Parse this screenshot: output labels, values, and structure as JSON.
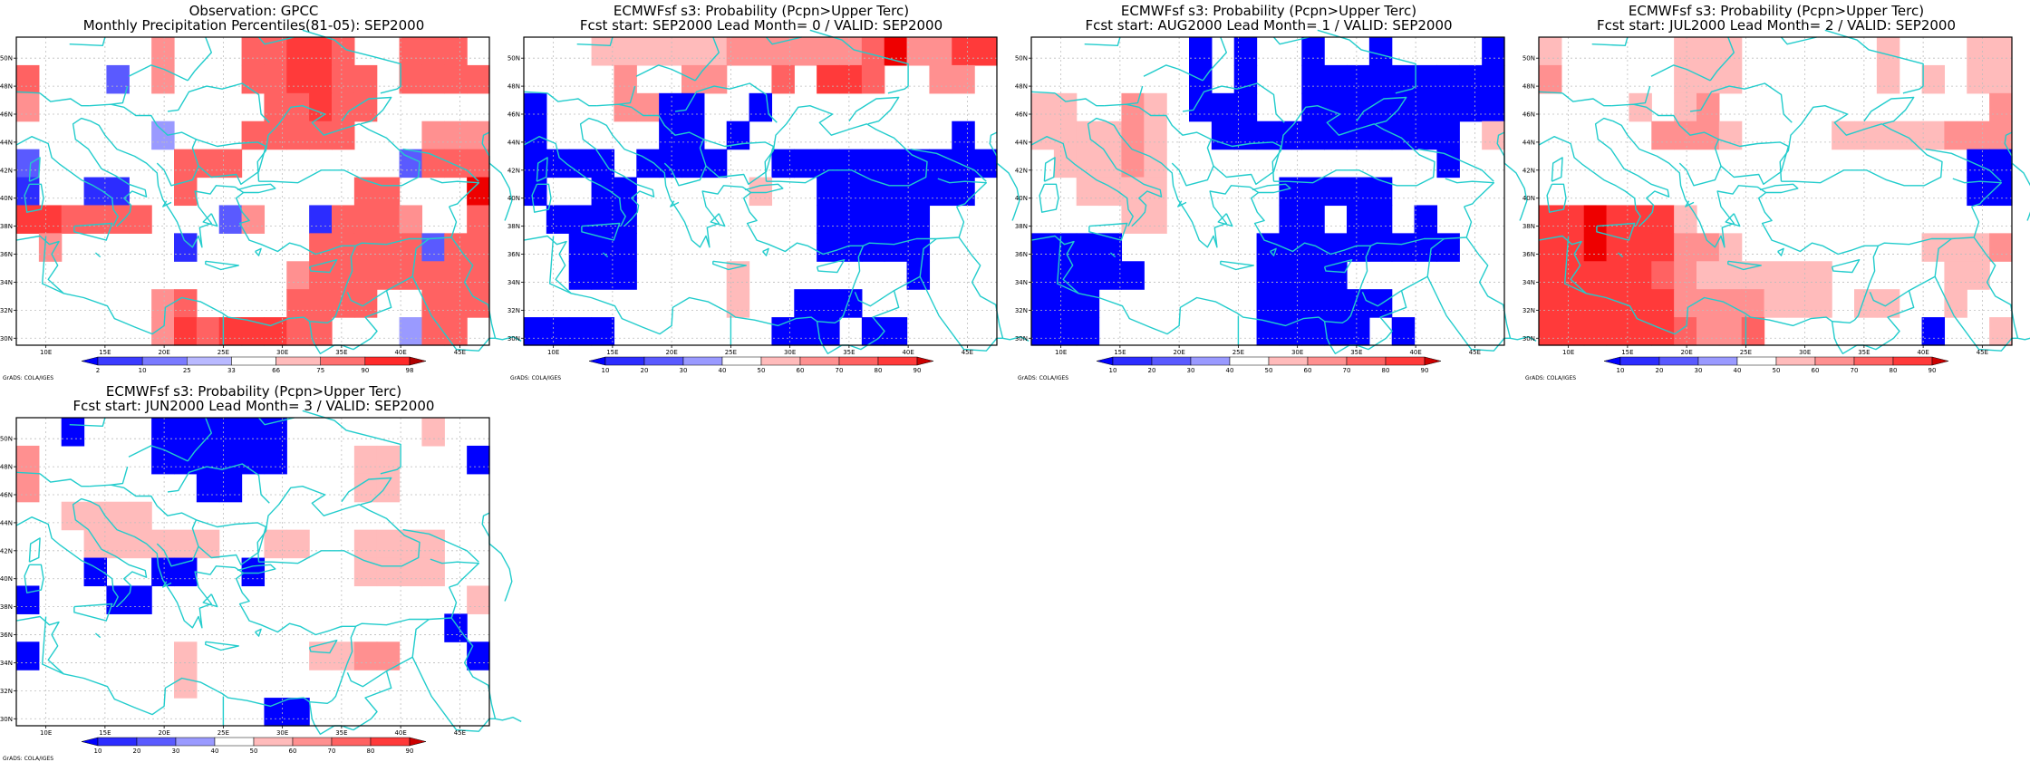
{
  "credit": "GrADS: COLA/IGES",
  "x_ticks": [
    "10E",
    "15E",
    "20E",
    "25E",
    "30E",
    "35E",
    "40E",
    "45E"
  ],
  "y_ticks": [
    "50N",
    "48N",
    "46N",
    "44N",
    "42N",
    "40N",
    "38N",
    "36N",
    "34N",
    "32N",
    "30N"
  ],
  "colors": {
    "coast": "#22cccc",
    "grid": "#bdbdbd",
    "blue_scale": [
      "#0000ff",
      "#2c2cff",
      "#5a5aff",
      "#9a9aff",
      "#c9c9ff"
    ],
    "red_scale": [
      "#ffbbbb",
      "#ff9090",
      "#ff6262",
      "#ff3a3a",
      "#ee0000",
      "#cc0000",
      "#8e0000"
    ]
  },
  "panels": [
    {
      "title1": "Observation: GPCC",
      "title2": "Monthly Precipitation Percentiles(81-05): SEP2000",
      "colorbar": {
        "labels": [
          "2",
          "10",
          "25",
          "33",
          "66",
          "75",
          "90",
          "98"
        ],
        "colors": [
          "#0000ff",
          "#3b3bff",
          "#7a7aff",
          "#b9b9ff",
          "#ffffff",
          "#ffbbbb",
          "#ff7070",
          "#ff2a2a",
          "#b00000"
        ]
      },
      "grid": [
        [
          0,
          0,
          0,
          0,
          0,
          0,
          2,
          0,
          0,
          0,
          3,
          3,
          4,
          4,
          3,
          0,
          0,
          3,
          3,
          3,
          0
        ],
        [
          3,
          0,
          0,
          0,
          -3,
          0,
          2,
          0,
          0,
          0,
          3,
          3,
          4,
          4,
          3,
          3,
          0,
          3,
          3,
          3,
          3
        ],
        [
          2,
          0,
          0,
          0,
          0,
          0,
          0,
          0,
          0,
          0,
          0,
          3,
          3,
          4,
          3,
          3,
          0,
          0,
          0,
          0,
          0
        ],
        [
          0,
          0,
          0,
          0,
          0,
          0,
          -4,
          0,
          0,
          0,
          3,
          3,
          3,
          3,
          3,
          0,
          0,
          0,
          2,
          2,
          2
        ],
        [
          -3,
          0,
          0,
          0,
          0,
          0,
          0,
          3,
          3,
          3,
          0,
          0,
          0,
          0,
          0,
          0,
          0,
          -3,
          3,
          3,
          3
        ],
        [
          -2,
          0,
          0,
          -2,
          -2,
          0,
          0,
          3,
          0,
          0,
          0,
          0,
          0,
          0,
          0,
          3,
          3,
          0,
          0,
          0,
          5
        ],
        [
          4,
          4,
          3,
          3,
          3,
          3,
          0,
          0,
          0,
          -3,
          2,
          0,
          0,
          -2,
          3,
          3,
          3,
          2,
          0,
          0,
          3
        ],
        [
          0,
          2,
          0,
          0,
          0,
          0,
          0,
          -2,
          0,
          0,
          0,
          0,
          0,
          3,
          3,
          3,
          3,
          3,
          -3,
          3,
          3
        ],
        [
          0,
          0,
          0,
          0,
          0,
          0,
          0,
          0,
          0,
          0,
          0,
          0,
          2,
          3,
          3,
          3,
          3,
          3,
          3,
          3,
          3
        ],
        [
          0,
          0,
          0,
          0,
          0,
          0,
          2,
          3,
          0,
          0,
          0,
          0,
          3,
          3,
          3,
          3,
          0,
          0,
          3,
          3,
          3
        ],
        [
          0,
          0,
          0,
          0,
          0,
          0,
          2,
          4,
          3,
          4,
          4,
          4,
          3,
          3,
          0,
          0,
          0,
          -4,
          3,
          3,
          0
        ]
      ]
    },
    {
      "title1": "ECMWFsf s3: Probability (Pcpn>Upper Terc)",
      "title2": "Fcst start: SEP2000  Lead Month= 0 / VALID: SEP2000",
      "colorbar": {
        "labels": [
          "10",
          "20",
          "30",
          "40",
          "50",
          "60",
          "70",
          "80",
          "90"
        ],
        "colors": [
          "#0000ff",
          "#2c2cff",
          "#5a5aff",
          "#9a9aff",
          "#ffffff",
          "#ffbbbb",
          "#ff9090",
          "#ff6262",
          "#ff3a3a",
          "#cc0000"
        ]
      },
      "grid": [
        [
          0,
          0,
          0,
          1,
          1,
          1,
          1,
          1,
          1,
          2,
          2,
          2,
          2,
          2,
          2,
          3,
          5,
          2,
          2,
          4,
          4
        ],
        [
          0,
          0,
          0,
          0,
          2,
          0,
          0,
          2,
          2,
          0,
          0,
          3,
          0,
          4,
          4,
          3,
          0,
          0,
          2,
          2,
          0
        ],
        [
          -1,
          0,
          0,
          0,
          2,
          2,
          -1,
          -1,
          0,
          0,
          -1,
          0,
          0,
          0,
          0,
          0,
          0,
          0,
          0,
          0,
          0
        ],
        [
          -1,
          0,
          0,
          0,
          0,
          0,
          -1,
          -1,
          0,
          -1,
          0,
          0,
          0,
          0,
          0,
          0,
          0,
          0,
          0,
          -1,
          0
        ],
        [
          -1,
          -1,
          -1,
          -1,
          0,
          -1,
          -1,
          -1,
          -1,
          0,
          0,
          -1,
          -1,
          -1,
          -1,
          -1,
          -1,
          -1,
          -1,
          -1,
          -1
        ],
        [
          -1,
          0,
          0,
          -1,
          -1,
          0,
          0,
          0,
          0,
          0,
          1,
          0,
          0,
          -1,
          -1,
          -1,
          -1,
          -1,
          -1,
          -1,
          0
        ],
        [
          0,
          -1,
          -1,
          -1,
          -1,
          0,
          0,
          0,
          0,
          0,
          0,
          0,
          0,
          -1,
          -1,
          -1,
          -1,
          -1,
          0,
          0,
          0
        ],
        [
          0,
          0,
          -1,
          -1,
          -1,
          0,
          0,
          0,
          0,
          0,
          0,
          0,
          0,
          -1,
          -1,
          -1,
          -1,
          -1,
          0,
          0,
          0
        ],
        [
          0,
          0,
          -1,
          -1,
          -1,
          0,
          0,
          0,
          0,
          1,
          0,
          0,
          0,
          0,
          0,
          0,
          0,
          -1,
          0,
          0,
          0
        ],
        [
          0,
          0,
          0,
          0,
          0,
          0,
          0,
          0,
          0,
          1,
          0,
          0,
          -1,
          -1,
          -1,
          0,
          0,
          0,
          0,
          0,
          0
        ],
        [
          -1,
          -1,
          -1,
          -1,
          0,
          0,
          0,
          0,
          0,
          0,
          0,
          -1,
          -1,
          -1,
          0,
          -1,
          -1,
          0,
          0,
          0,
          0
        ]
      ]
    },
    {
      "title1": "ECMWFsf s3: Probability (Pcpn>Upper Terc)",
      "title2": "Fcst start: AUG2000  Lead Month= 1 / VALID: SEP2000",
      "colorbar": {
        "labels": [
          "10",
          "20",
          "30",
          "40",
          "50",
          "60",
          "70",
          "80",
          "90"
        ],
        "colors": [
          "#0000ff",
          "#2c2cff",
          "#5a5aff",
          "#9a9aff",
          "#ffffff",
          "#ffbbbb",
          "#ff9090",
          "#ff6262",
          "#ff3a3a",
          "#cc0000"
        ]
      },
      "grid": [
        [
          0,
          0,
          0,
          0,
          0,
          0,
          0,
          -1,
          0,
          -1,
          0,
          0,
          -1,
          0,
          0,
          -1,
          0,
          0,
          0,
          0,
          -1
        ],
        [
          0,
          0,
          0,
          0,
          0,
          0,
          0,
          -1,
          0,
          -1,
          0,
          0,
          -1,
          -1,
          -1,
          -1,
          -1,
          -1,
          -1,
          -1,
          -1
        ],
        [
          1,
          1,
          0,
          0,
          2,
          1,
          0,
          -1,
          -1,
          -1,
          0,
          0,
          -1,
          -1,
          -1,
          -1,
          -1,
          -1,
          -1,
          -1,
          -1
        ],
        [
          1,
          1,
          1,
          1,
          2,
          1,
          0,
          0,
          -1,
          -1,
          -1,
          -1,
          -1,
          -1,
          -1,
          -1,
          -1,
          -1,
          -1,
          0,
          1
        ],
        [
          0,
          1,
          1,
          1,
          2,
          1,
          0,
          0,
          0,
          0,
          0,
          0,
          0,
          0,
          0,
          0,
          0,
          0,
          -1,
          0,
          0
        ],
        [
          0,
          0,
          1,
          1,
          1,
          1,
          0,
          0,
          0,
          0,
          0,
          -1,
          -1,
          -1,
          -1,
          -1,
          0,
          0,
          0,
          0,
          0
        ],
        [
          0,
          0,
          0,
          0,
          1,
          1,
          0,
          0,
          0,
          0,
          0,
          -1,
          -1,
          0,
          -1,
          -1,
          0,
          -1,
          0,
          0,
          0
        ],
        [
          -1,
          -1,
          -1,
          -1,
          0,
          0,
          0,
          0,
          0,
          0,
          -1,
          -1,
          -1,
          -1,
          -1,
          -1,
          -1,
          -1,
          -1,
          0,
          0
        ],
        [
          -1,
          -1,
          -1,
          -1,
          -1,
          0,
          0,
          0,
          0,
          0,
          -1,
          -1,
          -1,
          -1,
          0,
          0,
          0,
          0,
          0,
          0,
          0
        ],
        [
          -1,
          -1,
          -1,
          0,
          0,
          0,
          0,
          0,
          0,
          0,
          -1,
          -1,
          -1,
          -1,
          -1,
          -1,
          0,
          0,
          0,
          0,
          0
        ],
        [
          -1,
          -1,
          -1,
          0,
          0,
          0,
          0,
          0,
          0,
          0,
          -1,
          -1,
          -1,
          -1,
          -1,
          0,
          -1,
          0,
          0,
          0,
          0
        ]
      ]
    },
    {
      "title1": "ECMWFsf s3: Probability (Pcpn>Upper Terc)",
      "title2": "Fcst start: JUL2000  Lead Month= 2 / VALID: SEP2000",
      "colorbar": {
        "labels": [
          "10",
          "20",
          "30",
          "40",
          "50",
          "60",
          "70",
          "80",
          "90"
        ],
        "colors": [
          "#0000ff",
          "#2c2cff",
          "#5a5aff",
          "#9a9aff",
          "#ffffff",
          "#ffbbbb",
          "#ff9090",
          "#ff6262",
          "#ff3a3a",
          "#cc0000"
        ]
      },
      "grid": [
        [
          1,
          0,
          0,
          0,
          0,
          0,
          1,
          1,
          1,
          0,
          0,
          0,
          0,
          0,
          0,
          1,
          0,
          0,
          0,
          1,
          1
        ],
        [
          2,
          0,
          0,
          0,
          0,
          0,
          1,
          1,
          1,
          0,
          0,
          0,
          0,
          0,
          0,
          1,
          0,
          1,
          0,
          1,
          1
        ],
        [
          0,
          0,
          0,
          0,
          1,
          0,
          1,
          2,
          0,
          0,
          0,
          0,
          0,
          0,
          0,
          0,
          0,
          0,
          0,
          0,
          2
        ],
        [
          0,
          0,
          0,
          0,
          0,
          2,
          2,
          2,
          1,
          0,
          0,
          0,
          0,
          1,
          1,
          1,
          1,
          1,
          2,
          2,
          2
        ],
        [
          0,
          0,
          0,
          0,
          0,
          0,
          0,
          0,
          0,
          0,
          0,
          0,
          0,
          0,
          0,
          0,
          0,
          0,
          0,
          -1,
          -1
        ],
        [
          0,
          0,
          0,
          0,
          0,
          0,
          0,
          0,
          0,
          0,
          0,
          0,
          0,
          0,
          0,
          0,
          0,
          0,
          0,
          -1,
          -1
        ],
        [
          4,
          4,
          5,
          4,
          4,
          4,
          1,
          0,
          0,
          0,
          0,
          0,
          0,
          0,
          0,
          0,
          0,
          0,
          0,
          0,
          0
        ],
        [
          4,
          4,
          5,
          4,
          4,
          4,
          2,
          2,
          1,
          0,
          0,
          0,
          0,
          0,
          0,
          0,
          0,
          1,
          1,
          1,
          2
        ],
        [
          4,
          4,
          4,
          4,
          4,
          3,
          2,
          1,
          1,
          1,
          1,
          1,
          1,
          0,
          0,
          0,
          0,
          0,
          1,
          1,
          0
        ],
        [
          4,
          4,
          4,
          4,
          4,
          4,
          2,
          2,
          2,
          2,
          1,
          1,
          1,
          0,
          1,
          1,
          0,
          0,
          1,
          0,
          0
        ],
        [
          4,
          4,
          4,
          4,
          4,
          4,
          3,
          2,
          2,
          3,
          0,
          0,
          0,
          0,
          0,
          0,
          0,
          -1,
          0,
          0,
          1
        ]
      ]
    },
    {
      "title1": "ECMWFsf s3: Probability (Pcpn>Upper Terc)",
      "title2": "Fcst start: JUN2000  Lead Month= 3 / VALID: SEP2000",
      "colorbar": {
        "labels": [
          "10",
          "20",
          "30",
          "40",
          "50",
          "60",
          "70",
          "80",
          "90"
        ],
        "colors": [
          "#0000ff",
          "#2c2cff",
          "#5a5aff",
          "#9a9aff",
          "#ffffff",
          "#ffbbbb",
          "#ff9090",
          "#ff6262",
          "#ff3a3a",
          "#cc0000"
        ]
      },
      "grid": [
        [
          0,
          0,
          -1,
          0,
          0,
          0,
          -1,
          -1,
          -1,
          -1,
          -1,
          -1,
          0,
          0,
          0,
          0,
          0,
          0,
          1,
          0,
          0
        ],
        [
          2,
          0,
          0,
          0,
          0,
          0,
          -1,
          -1,
          -1,
          -1,
          -1,
          -1,
          0,
          0,
          0,
          1,
          1,
          0,
          0,
          0,
          -1
        ],
        [
          2,
          0,
          0,
          0,
          0,
          0,
          0,
          0,
          -1,
          -1,
          0,
          0,
          0,
          0,
          0,
          1,
          1,
          0,
          0,
          0,
          0
        ],
        [
          0,
          0,
          1,
          1,
          1,
          1,
          0,
          0,
          0,
          0,
          0,
          0,
          0,
          0,
          0,
          0,
          0,
          0,
          0,
          0,
          0
        ],
        [
          0,
          0,
          0,
          1,
          1,
          1,
          1,
          1,
          1,
          0,
          0,
          1,
          1,
          0,
          0,
          1,
          1,
          1,
          1,
          0,
          0
        ],
        [
          0,
          0,
          0,
          -1,
          0,
          0,
          -1,
          -1,
          0,
          0,
          -1,
          0,
          0,
          0,
          0,
          1,
          1,
          1,
          1,
          0,
          0
        ],
        [
          -1,
          0,
          0,
          0,
          -1,
          -1,
          0,
          0,
          0,
          0,
          0,
          0,
          0,
          0,
          0,
          0,
          0,
          0,
          0,
          0,
          1
        ],
        [
          0,
          0,
          0,
          0,
          0,
          0,
          0,
          0,
          0,
          0,
          0,
          0,
          0,
          0,
          0,
          0,
          0,
          0,
          0,
          -1,
          0
        ],
        [
          -1,
          0,
          0,
          0,
          0,
          0,
          0,
          1,
          0,
          0,
          0,
          0,
          0,
          1,
          1,
          2,
          2,
          0,
          0,
          0,
          -1
        ],
        [
          0,
          0,
          0,
          0,
          0,
          0,
          0,
          1,
          0,
          0,
          0,
          0,
          0,
          0,
          0,
          0,
          0,
          0,
          0,
          0,
          0
        ],
        [
          0,
          0,
          0,
          0,
          0,
          0,
          0,
          0,
          0,
          0,
          0,
          -1,
          -1,
          0,
          0,
          0,
          0,
          0,
          0,
          0,
          0
        ]
      ]
    }
  ]
}
